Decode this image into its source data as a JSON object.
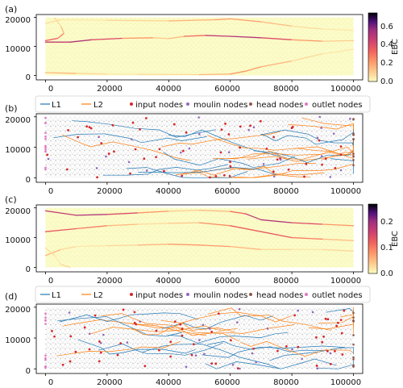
{
  "panels": [
    {
      "label": "(a)",
      "kind": "ebc",
      "colorbar": {
        "label": "EBC",
        "ticks": [
          "0.0",
          "0.2",
          "0.4",
          "0.6"
        ],
        "max": 0.75
      }
    },
    {
      "label": "(b)",
      "kind": "graph"
    },
    {
      "label": "(c)",
      "kind": "ebc",
      "colorbar": {
        "label": "EBC",
        "ticks": [
          "0.0",
          "0.1",
          "0.2"
        ],
        "max": 0.27
      }
    },
    {
      "label": "(d)",
      "kind": "graph"
    }
  ],
  "legend": [
    {
      "label": "L1",
      "kind": "line",
      "color": "#1f77b4"
    },
    {
      "label": "L2",
      "kind": "line",
      "color": "#ff7f0e"
    },
    {
      "label": "input nodes",
      "kind": "dot",
      "color": "#d62728"
    },
    {
      "label": "moulin nodes",
      "kind": "dot",
      "color": "#9467bd"
    },
    {
      "label": "head nodes",
      "kind": "dot",
      "color": "#8c564b"
    },
    {
      "label": "outlet nodes",
      "kind": "dot",
      "color": "#e377c2"
    }
  ],
  "axes": {
    "x_ticks": [
      "0",
      "20000",
      "40000",
      "60000",
      "80000",
      "100000"
    ],
    "y_ticks": [
      "0",
      "10000",
      "20000"
    ],
    "xlim": [
      -3000,
      103000
    ],
    "ylim": [
      -1500,
      21000
    ]
  },
  "chart_data": [
    {
      "type": "heatmap",
      "panel": "(a)",
      "x_range": [
        0,
        100000
      ],
      "y_range": [
        0,
        20000
      ],
      "colorbar": {
        "label": "EBC",
        "range": [
          0,
          0.75
        ],
        "ticks": [
          0.0,
          0.2,
          0.4,
          0.6
        ]
      },
      "series": [
        {
          "values": [
            [
              0,
              11500
            ],
            [
              8000,
              11500
            ],
            [
              15000,
              12300
            ],
            [
              25000,
              12800
            ],
            [
              35000,
              13000
            ],
            [
              40000,
              12700
            ],
            [
              45000,
              13500
            ],
            [
              52000,
              13800
            ],
            [
              60000,
              13500
            ],
            [
              70000,
              13000
            ],
            [
              80000,
              12300
            ],
            [
              90000,
              11800
            ],
            [
              100000,
              12000
            ]
          ]
        },
        {
          "values": [
            [
              0,
              12000
            ],
            [
              4000,
              12800
            ],
            [
              6000,
              14500
            ],
            [
              5000,
              17000
            ],
            [
              3000,
              19800
            ]
          ]
        },
        {
          "values": [
            [
              0,
              1000
            ],
            [
              10000,
              700
            ],
            [
              20000,
              500
            ],
            [
              30000,
              400
            ],
            [
              50000,
              300
            ],
            [
              60000,
              500
            ],
            [
              65000,
              1500
            ],
            [
              70000,
              3000
            ],
            [
              80000,
              5000
            ],
            [
              90000,
              7500
            ],
            [
              100000,
              9000
            ]
          ]
        },
        {
          "values": [
            [
              0,
              18000
            ],
            [
              5000,
              19200
            ],
            [
              20000,
              19000
            ],
            [
              40000,
              18800
            ],
            [
              55000,
              19200
            ],
            [
              60000,
              19500
            ],
            [
              70000,
              18500
            ],
            [
              80000,
              17000
            ],
            [
              90000,
              16000
            ],
            [
              100000,
              15500
            ]
          ]
        }
      ]
    },
    {
      "type": "scatter",
      "panel": "(b)",
      "x_range": [
        0,
        100000
      ],
      "y_range": [
        0,
        20000
      ],
      "series": [
        {
          "name": "L1",
          "values": []
        },
        {
          "name": "L2",
          "values": []
        },
        {
          "name": "input nodes",
          "values": []
        },
        {
          "name": "moulin nodes",
          "values": []
        },
        {
          "name": "head nodes",
          "values": []
        },
        {
          "name": "outlet nodes",
          "values": []
        }
      ]
    },
    {
      "type": "heatmap",
      "panel": "(c)",
      "x_range": [
        0,
        100000
      ],
      "y_range": [
        0,
        20000
      ],
      "colorbar": {
        "label": "EBC",
        "range": [
          0,
          0.27
        ],
        "ticks": [
          0.0,
          0.1,
          0.2
        ]
      },
      "series": [
        {
          "values": [
            [
              0,
              19000
            ],
            [
              10000,
              17500
            ],
            [
              20000,
              17800
            ],
            [
              30000,
              18300
            ],
            [
              40000,
              18900
            ],
            [
              50000,
              19200
            ],
            [
              60000,
              18800
            ],
            [
              65000,
              18000
            ],
            [
              70000,
              16000
            ],
            [
              80000,
              15000
            ],
            [
              90000,
              14500
            ],
            [
              100000,
              14000
            ]
          ]
        },
        {
          "values": [
            [
              0,
              12000
            ],
            [
              10000,
              13000
            ],
            [
              20000,
              14000
            ],
            [
              30000,
              14500
            ],
            [
              40000,
              14800
            ],
            [
              50000,
              15000
            ],
            [
              60000,
              14000
            ],
            [
              70000,
              12000
            ],
            [
              80000,
              10000
            ],
            [
              90000,
              9500
            ],
            [
              100000,
              9000
            ]
          ]
        },
        {
          "values": [
            [
              0,
              4000
            ],
            [
              5000,
              6000
            ],
            [
              10000,
              7000
            ],
            [
              20000,
              7300
            ],
            [
              30000,
              7500
            ],
            [
              40000,
              7800
            ],
            [
              50000,
              7500
            ],
            [
              60000,
              7000
            ],
            [
              70000,
              6000
            ],
            [
              80000,
              6000
            ],
            [
              90000,
              6000
            ],
            [
              100000,
              5500
            ]
          ]
        },
        {
          "values": [
            [
              0,
              6500
            ],
            [
              3000,
              4000
            ],
            [
              5000,
              1000
            ],
            [
              8000,
              0
            ]
          ]
        }
      ]
    },
    {
      "type": "scatter",
      "panel": "(d)",
      "x_range": [
        0,
        100000
      ],
      "y_range": [
        0,
        20000
      ],
      "series": [
        {
          "name": "L1",
          "values": []
        },
        {
          "name": "L2",
          "values": []
        },
        {
          "name": "input nodes",
          "values": []
        },
        {
          "name": "moulin nodes",
          "values": []
        },
        {
          "name": "head nodes",
          "values": []
        },
        {
          "name": "outlet nodes",
          "values": []
        }
      ]
    }
  ]
}
